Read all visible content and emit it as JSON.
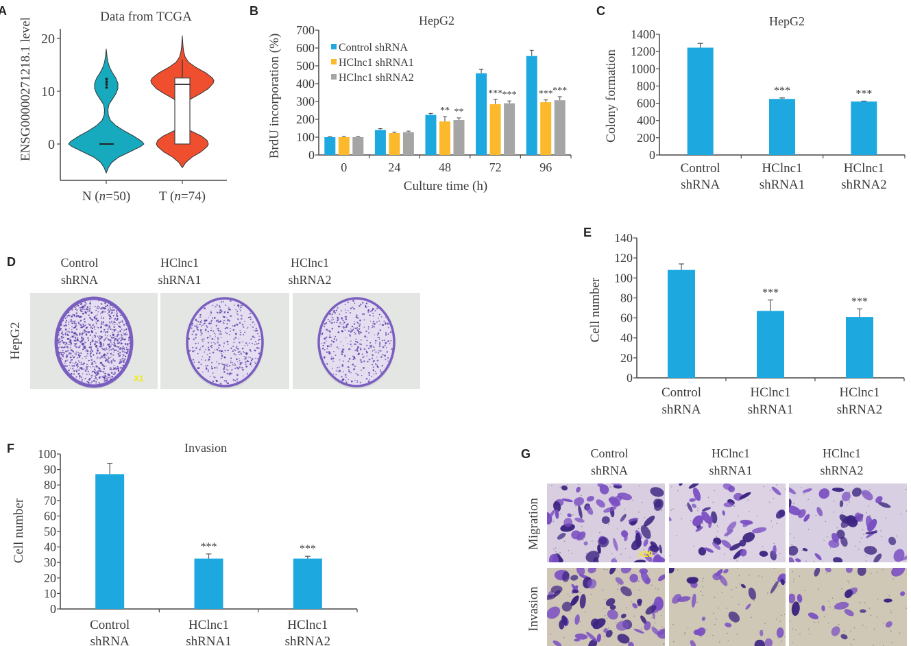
{
  "colors": {
    "blue": "#1da8e0",
    "orange": "#fbb92b",
    "gray": "#a5a5a5",
    "violin_n": "#17a9bd",
    "violin_t": "#ef4f2f",
    "axis": "#444444",
    "stain": "#5b3aa8",
    "scale_label": "#f5e816"
  },
  "panels": {
    "A": {
      "letter": "A"
    },
    "B": {
      "letter": "B"
    },
    "C": {
      "letter": "C"
    },
    "D": {
      "letter": "D",
      "row_label": "HepG2",
      "columns": [
        {
          "line1": "Control",
          "line2": "shRNA"
        },
        {
          "line1": "HClnc1",
          "line2": "shRNA1"
        },
        {
          "line1": "HClnc1",
          "line2": "shRNA2"
        }
      ],
      "scale_label": "X1",
      "colony_density": [
        1.0,
        0.45,
        0.42
      ]
    },
    "E": {
      "letter": "E"
    },
    "F": {
      "letter": "F"
    },
    "G": {
      "letter": "G",
      "columns": [
        {
          "line1": "Control",
          "line2": "shRNA"
        },
        {
          "line1": "HClnc1",
          "line2": "shRNA1"
        },
        {
          "line1": "HClnc1",
          "line2": "shRNA2"
        }
      ],
      "rows": [
        "Migration",
        "Invasion"
      ],
      "scale_label": "X20"
    }
  },
  "chart_data": [
    {
      "id": "A",
      "type": "violin",
      "title": "Data from TCGA",
      "ylabel": "ENSG00000271218.1 level",
      "xlabel": "",
      "ylim": [
        -6,
        22
      ],
      "yticks": [
        "0",
        "10",
        "20"
      ],
      "ytick_values": [
        0,
        10,
        20
      ],
      "categories": [
        {
          "prefix": "N (",
          "n_symbol": "n",
          "suffix": "=50)"
        },
        {
          "prefix": "T (",
          "n_symbol": "n",
          "suffix": "=74)"
        }
      ],
      "groups": [
        {
          "name": "N",
          "n": 50,
          "min": -5.5,
          "max": 18,
          "modes": [
            0,
            11
          ],
          "median": 0,
          "outliers": [
            10.7,
            11.3,
            11.8,
            12.3
          ]
        },
        {
          "name": "T",
          "n": 74,
          "min": -4.5,
          "max": 20.5,
          "modes": [
            0,
            12
          ],
          "q1": 0,
          "median": 11.3,
          "q3": 12.5,
          "whisker_high": 16
        }
      ]
    },
    {
      "id": "B",
      "type": "bar",
      "title": "HepG2",
      "xlabel": "Culture time (h)",
      "ylabel": "BrdU incorporation (%)",
      "ylim": [
        0,
        700
      ],
      "yticks": [
        "0",
        "100",
        "200",
        "300",
        "400",
        "500",
        "600",
        "700"
      ],
      "categories": [
        "0",
        "24",
        "48",
        "72",
        "96"
      ],
      "legend": [
        "Control shRNA",
        "HClnc1 shRNA1",
        "HClnc1 shRNA2"
      ],
      "legend_position": "top-left",
      "series": [
        {
          "name": "Control shRNA",
          "values": [
            100,
            140,
            225,
            458,
            555
          ],
          "errors": [
            3,
            8,
            8,
            22,
            32
          ],
          "sig": [
            "",
            "",
            "",
            "",
            ""
          ]
        },
        {
          "name": "HClnc1 shRNA1",
          "values": [
            100,
            123,
            188,
            285,
            296
          ],
          "errors": [
            4,
            5,
            27,
            27,
            13
          ],
          "sig": [
            "",
            "",
            "**",
            "***",
            "***"
          ]
        },
        {
          "name": "HClnc1 shRNA2",
          "values": [
            100,
            128,
            196,
            290,
            307
          ],
          "errors": [
            3,
            6,
            12,
            13,
            20
          ],
          "sig": [
            "",
            "",
            "**",
            "***",
            "***"
          ]
        }
      ]
    },
    {
      "id": "C",
      "type": "bar",
      "title": "HepG2",
      "ylabel": "Colony formation",
      "xlabel": "",
      "ylim": [
        0,
        1400
      ],
      "yticks": [
        "0",
        "200",
        "400",
        "600",
        "800",
        "1000",
        "1200",
        "1400"
      ],
      "categories": [
        {
          "line1": "Control",
          "line2": "shRNA"
        },
        {
          "line1": "HClnc1",
          "line2": "shRNA1"
        },
        {
          "line1": "HClnc1",
          "line2": "shRNA2"
        }
      ],
      "values": [
        1245,
        650,
        620
      ],
      "errors": [
        50,
        12,
        5
      ],
      "sig": [
        "",
        "***",
        "***"
      ]
    },
    {
      "id": "E",
      "type": "bar",
      "title": "",
      "ylabel": "Cell number",
      "xlabel": "",
      "ylim": [
        0,
        140
      ],
      "yticks": [
        "0",
        "20",
        "40",
        "60",
        "80",
        "100",
        "120",
        "140"
      ],
      "categories": [
        {
          "line1": "Control",
          "line2": "shRNA"
        },
        {
          "line1": "HClnc1",
          "line2": "shRNA1"
        },
        {
          "line1": "HClnc1",
          "line2": "shRNA2"
        }
      ],
      "values": [
        108,
        67,
        61
      ],
      "errors": [
        6,
        11,
        8
      ],
      "sig": [
        "",
        "***",
        "***"
      ]
    },
    {
      "id": "F",
      "type": "bar",
      "title": "Invasion",
      "ylabel": "Cell number",
      "xlabel": "",
      "ylim": [
        0,
        100
      ],
      "yticks": [
        "0",
        "10",
        "20",
        "30",
        "40",
        "50",
        "60",
        "70",
        "80",
        "90",
        "100"
      ],
      "categories": [
        {
          "line1": "Control",
          "line2": "shRNA"
        },
        {
          "line1": "HClnc1",
          "line2": "shRNA1"
        },
        {
          "line1": "HClnc1",
          "line2": "shRNA2"
        }
      ],
      "values": [
        87,
        32.5,
        32.5
      ],
      "errors": [
        7,
        3,
        1.5
      ],
      "sig": [
        "",
        "***",
        "***"
      ]
    }
  ]
}
